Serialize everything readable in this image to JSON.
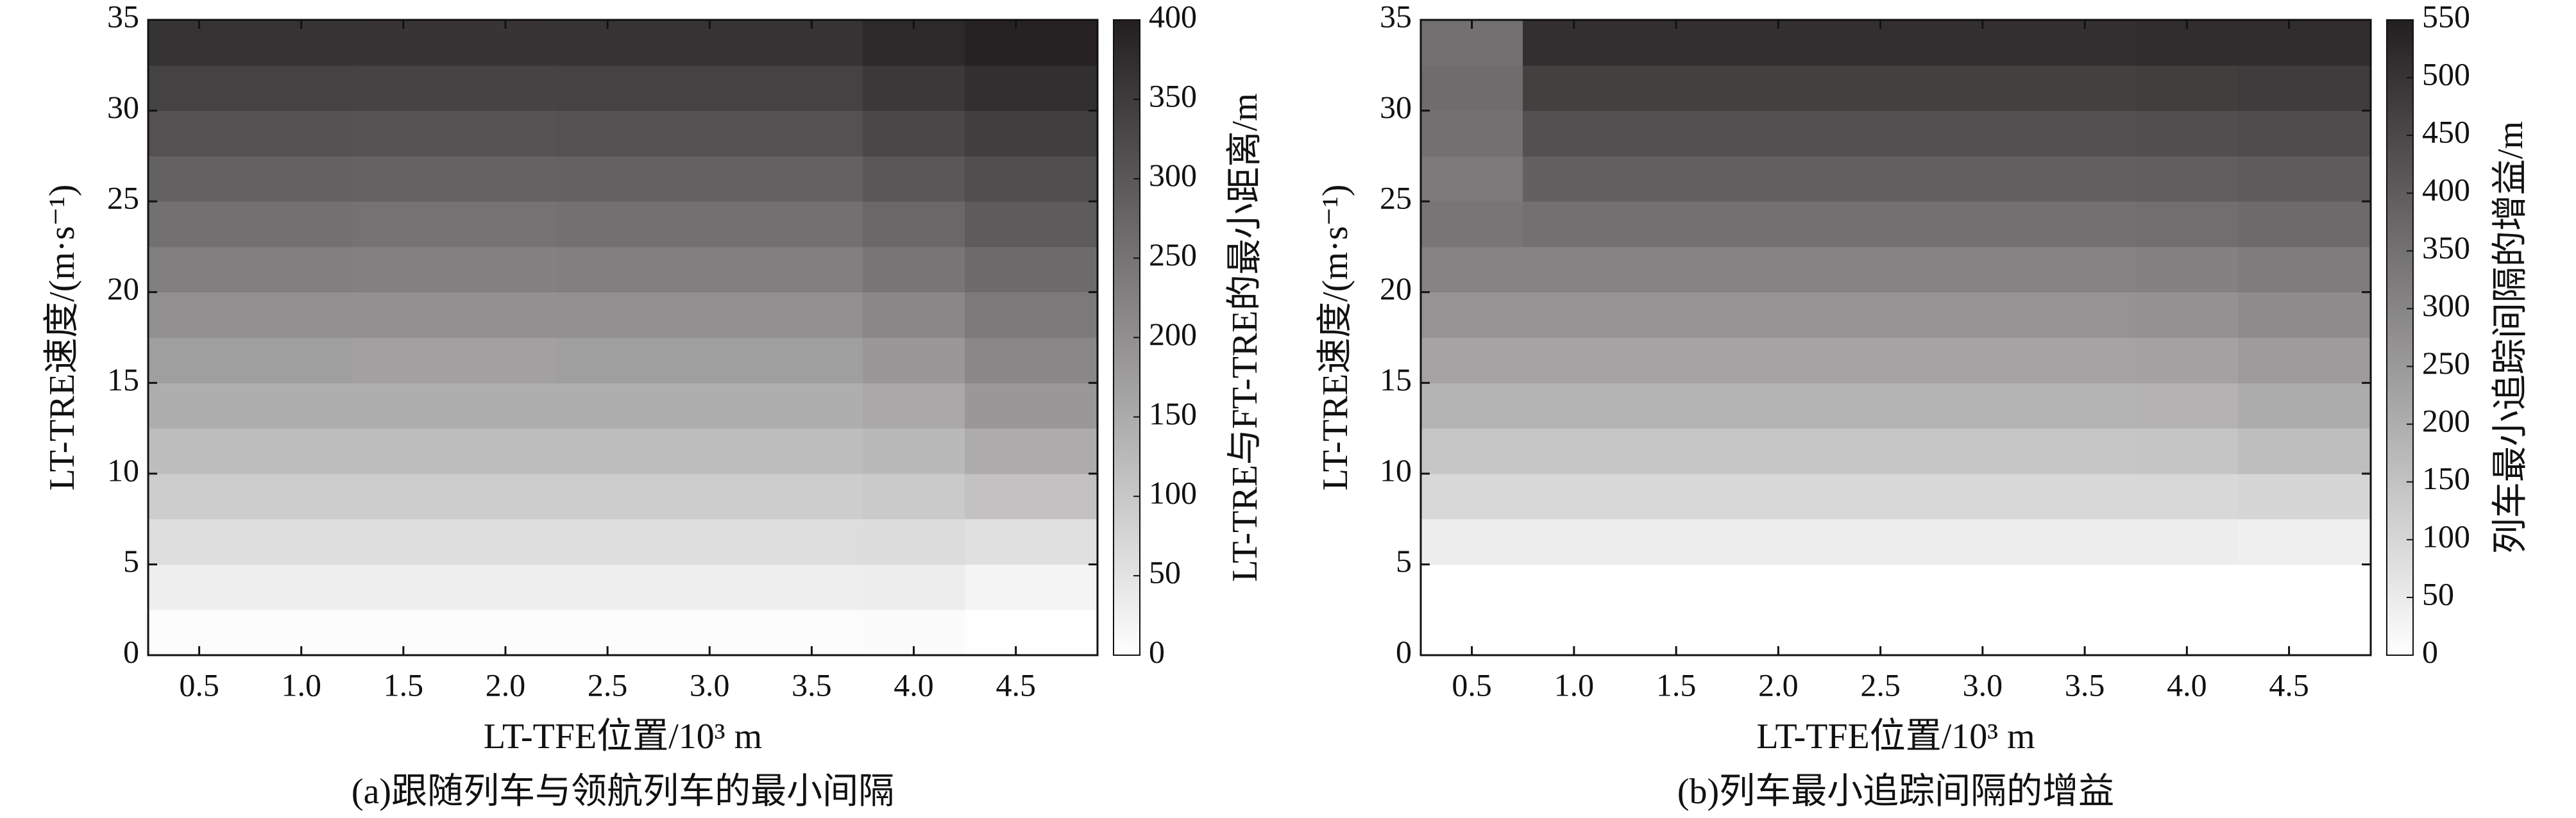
{
  "chart_data": [
    {
      "type": "contour",
      "title": "(a)跟随列车与领航列车的最小间隔",
      "x_label": "LT-TFE位置/10³ m",
      "y_label": "LT-TRE速度/(m·s⁻¹)",
      "xlim": [
        0.25,
        4.9
      ],
      "xticks": [
        0.5,
        {
          "value": 1,
          "label": "1.0"
        },
        1.5,
        {
          "value": 2,
          "label": "2.0"
        },
        2.5,
        {
          "value": 3,
          "label": "3.0"
        },
        3.5,
        {
          "value": 4,
          "label": "4.0"
        },
        4.5
      ],
      "ylim": [
        0,
        35
      ],
      "yticks": [
        0,
        5,
        10,
        15,
        20,
        25,
        30,
        35
      ],
      "x": [
        0.5,
        1,
        1.5,
        2,
        2.5,
        3,
        3.5,
        4,
        4.5
      ],
      "y": [
        1.25,
        3.75,
        6.25,
        8.75,
        11.25,
        13.75,
        16.25,
        18.75,
        21.25,
        23.75,
        26.25,
        28.75,
        31.25,
        33.75
      ],
      "z": [
        [
          5,
          5,
          5,
          5,
          5,
          5,
          5,
          8,
          2
        ],
        [
          30,
          30,
          30,
          30,
          30,
          30,
          30,
          32,
          20
        ],
        [
          60,
          60,
          60,
          60,
          60,
          60,
          60,
          62,
          55
        ],
        [
          90,
          90,
          90,
          90,
          90,
          90,
          90,
          95,
          110
        ],
        [
          118,
          118,
          118,
          118,
          118,
          118,
          118,
          125,
          150
        ],
        [
          145,
          145,
          145,
          145,
          145,
          145,
          145,
          155,
          185
        ],
        [
          172,
          172,
          170,
          170,
          172,
          172,
          172,
          185,
          215
        ],
        [
          200,
          200,
          198,
          198,
          200,
          200,
          200,
          215,
          240
        ],
        [
          228,
          228,
          225,
          225,
          228,
          228,
          228,
          245,
          265
        ],
        [
          255,
          255,
          252,
          252,
          255,
          255,
          255,
          272,
          292
        ],
        [
          283,
          283,
          280,
          280,
          283,
          283,
          283,
          300,
          318
        ],
        [
          310,
          310,
          307,
          307,
          310,
          310,
          310,
          328,
          345
        ],
        [
          338,
          338,
          335,
          335,
          338,
          338,
          338,
          355,
          372
        ],
        [
          365,
          365,
          362,
          362,
          365,
          365,
          365,
          382,
          395
        ]
      ],
      "colormap": [
        "#ffffff",
        "#231f20"
      ],
      "colorbar": {
        "label": "LT-TRE与FT-TRE的最小距离/m",
        "lim": [
          0,
          400
        ],
        "ticks": [
          0,
          50,
          100,
          150,
          200,
          250,
          300,
          350,
          400
        ]
      }
    },
    {
      "type": "contour",
      "title": "(b)列车最小追踪间隔的增益",
      "x_label": "LT-TFE位置/10³ m",
      "y_label": "LT-TRE速度/(m·s⁻¹)",
      "xlim": [
        0.25,
        4.9
      ],
      "xticks": [
        0.5,
        {
          "value": 1,
          "label": "1.0"
        },
        1.5,
        {
          "value": 2,
          "label": "2.0"
        },
        2.5,
        {
          "value": 3,
          "label": "3.0"
        },
        3.5,
        {
          "value": 4,
          "label": "4.0"
        },
        4.5
      ],
      "ylim": [
        0,
        35
      ],
      "yticks": [
        0,
        5,
        10,
        15,
        20,
        25,
        30,
        35
      ],
      "x": [
        0.5,
        1,
        1.5,
        2,
        2.5,
        3,
        3.5,
        4,
        4.5
      ],
      "y": [
        1.25,
        3.75,
        6.25,
        8.75,
        11.25,
        13.75,
        16.25,
        18.75,
        21.25,
        23.75,
        26.25,
        28.75,
        31.25,
        33.75
      ],
      "z": [
        [
          0,
          0,
          0,
          0,
          0,
          0,
          0,
          0,
          0
        ],
        [
          0,
          0,
          0,
          0,
          0,
          0,
          0,
          0,
          0
        ],
        [
          45,
          45,
          45,
          45,
          45,
          45,
          45,
          45,
          40
        ],
        [
          95,
          95,
          95,
          95,
          95,
          95,
          95,
          95,
          100
        ],
        [
          140,
          140,
          140,
          140,
          140,
          140,
          140,
          142,
          160
        ],
        [
          185,
          185,
          185,
          185,
          185,
          185,
          185,
          188,
          205
        ],
        [
          225,
          225,
          225,
          225,
          225,
          225,
          225,
          230,
          245
        ],
        [
          265,
          265,
          265,
          265,
          265,
          265,
          265,
          270,
          285
        ],
        [
          305,
          305,
          305,
          305,
          305,
          305,
          305,
          310,
          322
        ],
        [
          340,
          350,
          350,
          350,
          350,
          350,
          350,
          355,
          365
        ],
        [
          330,
          390,
          390,
          390,
          390,
          390,
          390,
          395,
          402
        ],
        [
          350,
          430,
          430,
          430,
          430,
          430,
          430,
          435,
          440
        ],
        [
          360,
          470,
          470,
          470,
          470,
          470,
          470,
          475,
          478
        ],
        [
          350,
          510,
          510,
          510,
          510,
          510,
          510,
          515,
          515
        ]
      ],
      "colormap": [
        "#ffffff",
        "#231f20"
      ],
      "colorbar": {
        "label": "列车最小追踪间隔的增益/m",
        "lim": [
          0,
          550
        ],
        "ticks": [
          0,
          50,
          100,
          150,
          200,
          250,
          300,
          350,
          400,
          450,
          500,
          550
        ]
      }
    }
  ]
}
